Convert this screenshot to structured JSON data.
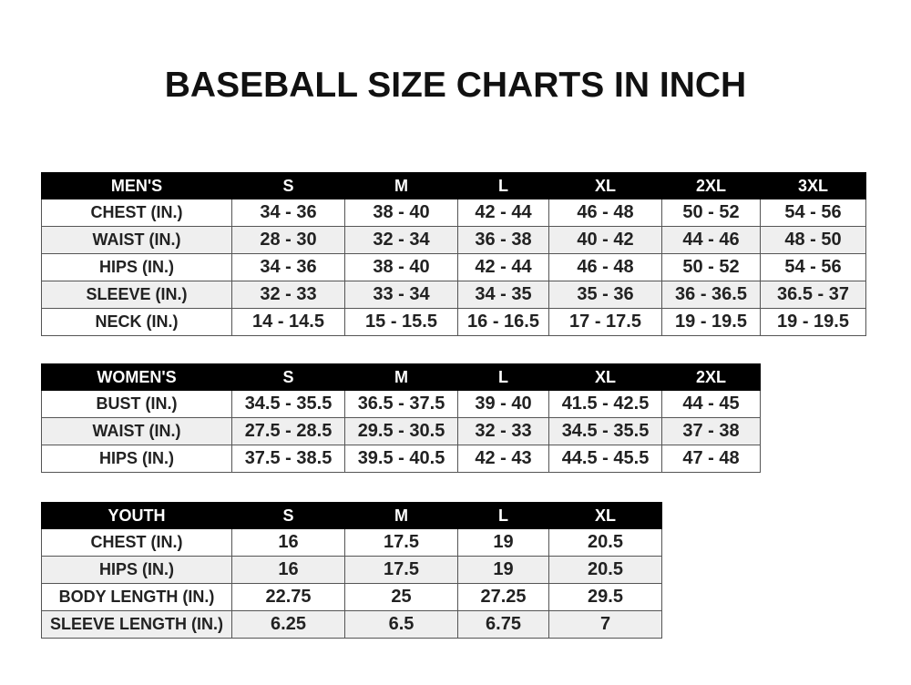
{
  "title": "BASEBALL SIZE CHARTS IN INCH",
  "tables": [
    {
      "id": "mens",
      "header": [
        "MEN'S",
        "S",
        "M",
        "L",
        "XL",
        "2XL",
        "3XL"
      ],
      "rows": [
        [
          "CHEST (IN.)",
          "34 - 36",
          "38 - 40",
          "42 - 44",
          "46 - 48",
          "50 - 52",
          "54 - 56"
        ],
        [
          "WAIST (IN.)",
          "28 - 30",
          "32 - 34",
          "36 - 38",
          "40 - 42",
          "44 - 46",
          "48 - 50"
        ],
        [
          "HIPS (IN.)",
          "34 - 36",
          "38 - 40",
          "42 - 44",
          "46 - 48",
          "50 - 52",
          "54 - 56"
        ],
        [
          "SLEEVE (IN.)",
          "32 - 33",
          "33 - 34",
          "34 - 35",
          "35 - 36",
          "36 - 36.5",
          "36.5 - 37"
        ],
        [
          "NECK (IN.)",
          "14 - 14.5",
          "15 - 15.5",
          "16 - 16.5",
          "17 - 17.5",
          "19 - 19.5",
          "19 - 19.5"
        ]
      ]
    },
    {
      "id": "womens",
      "header": [
        "WOMEN'S",
        "S",
        "M",
        "L",
        "XL",
        "2XL"
      ],
      "rows": [
        [
          "BUST (IN.)",
          "34.5 - 35.5",
          "36.5 - 37.5",
          "39 - 40",
          "41.5 - 42.5",
          "44 - 45"
        ],
        [
          "WAIST (IN.)",
          "27.5 - 28.5",
          "29.5 - 30.5",
          "32 - 33",
          "34.5 - 35.5",
          "37 - 38"
        ],
        [
          "HIPS (IN.)",
          "37.5 - 38.5",
          "39.5 - 40.5",
          "42 - 43",
          "44.5 - 45.5",
          "47 - 48"
        ]
      ]
    },
    {
      "id": "youth",
      "header": [
        "YOUTH",
        "S",
        "M",
        "L",
        "XL"
      ],
      "rows": [
        [
          "CHEST (IN.)",
          "16",
          "17.5",
          "19",
          "20.5"
        ],
        [
          "HIPS (IN.)",
          "16",
          "17.5",
          "19",
          "20.5"
        ],
        [
          "BODY LENGTH (IN.)",
          "22.75",
          "25",
          "27.25",
          "29.5"
        ],
        [
          "SLEEVE LENGTH (IN.)",
          "6.25",
          "6.5",
          "6.75",
          "7"
        ]
      ]
    }
  ]
}
